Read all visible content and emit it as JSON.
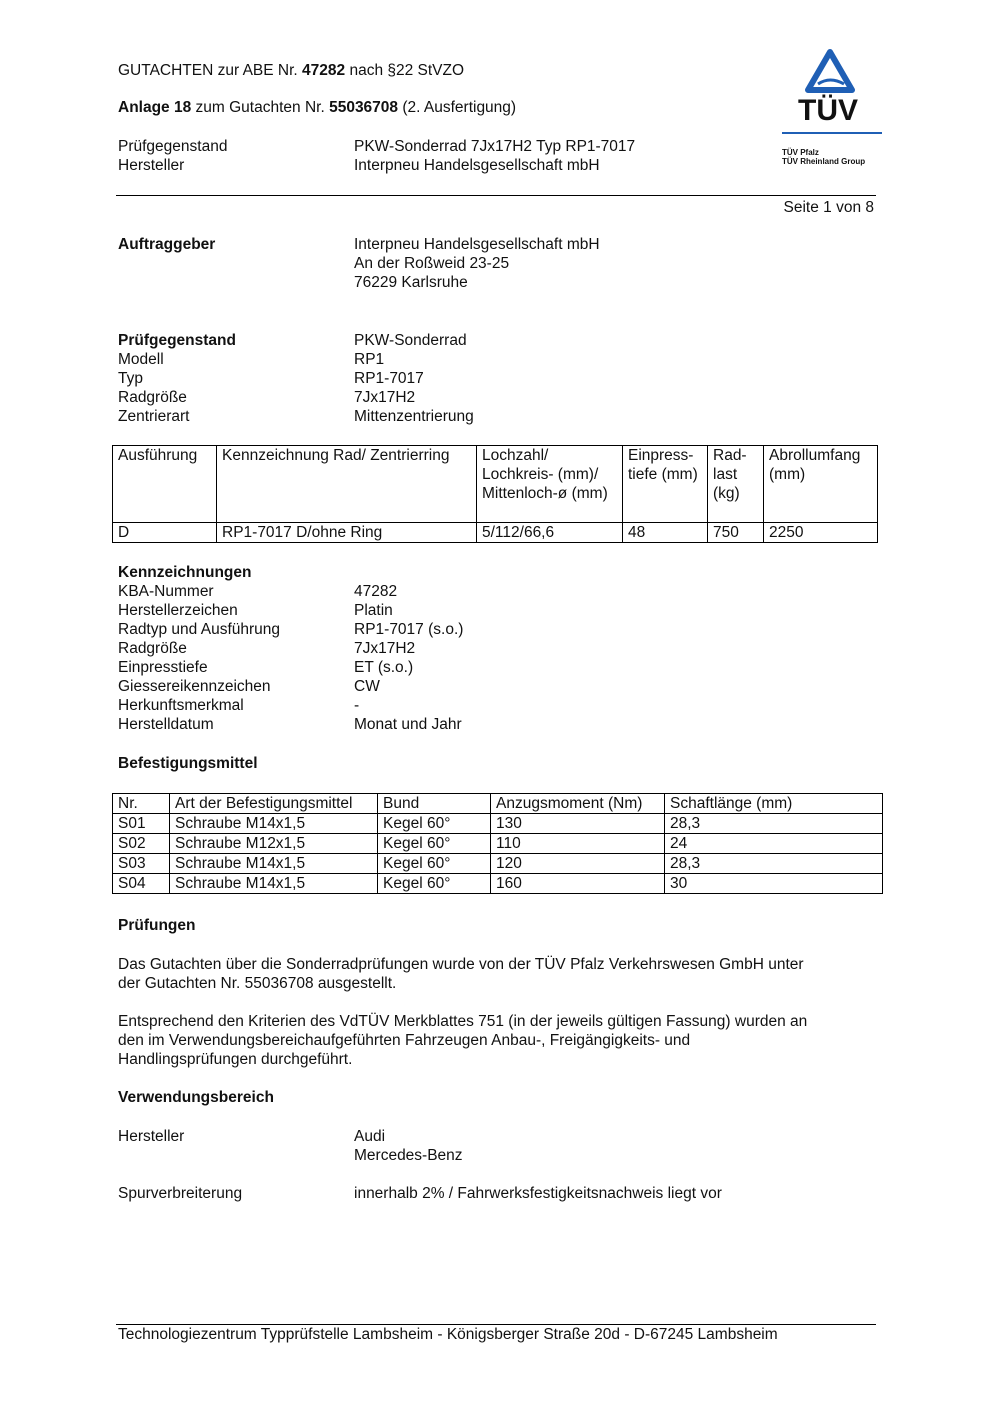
{
  "header": {
    "line1": {
      "pre": "GUTACHTEN zur ABE Nr. ",
      "num": "47282",
      "post": " nach §22 StVZO"
    },
    "line2": {
      "pre": "Anlage 18",
      "mid": " zum Gutachten Nr. ",
      "num": "55036708",
      "post": " (2. Ausfertigung)"
    },
    "rows": [
      {
        "label": "Prüfgegenstand",
        "value": "PKW-Sonderrad 7Jx17H2 Typ RP1-7017"
      },
      {
        "label": "Hersteller",
        "value": "Interpneu Handelsgesellschaft mbH"
      }
    ],
    "page": "Seite 1 von 8"
  },
  "logo": {
    "text": "TÜV",
    "sub1": "TÜV Pfalz",
    "sub2": "TÜV Rheinland Group",
    "color": "#1f5fb5"
  },
  "auftraggeber": {
    "label": "Auftraggeber",
    "lines": [
      "Interpneu Handelsgesellschaft mbH",
      "An der Roßweid 23-25",
      "76229 Karlsruhe"
    ]
  },
  "pruef": {
    "rows": [
      {
        "label": "Prüfgegenstand",
        "value": "PKW-Sonderrad"
      },
      {
        "label": "Modell",
        "value": "RP1"
      },
      {
        "label": "Typ",
        "value": "RP1-7017"
      },
      {
        "label": "Radgröße",
        "value": "7Jx17H2"
      },
      {
        "label": "Zentrierart",
        "value": "Mittenzentrierung"
      }
    ]
  },
  "table1": {
    "headers": [
      "Ausführung",
      "Kennzeichnung Rad/ Zentrierring",
      "Lochzahl/ Lochkreis- (mm)/ Mittenloch-ø (mm)",
      "Einpress-tiefe (mm)",
      "Rad-last (kg)",
      "Abrollumfang (mm)"
    ],
    "rows": [
      [
        "D",
        "RP1-7017 D/ohne Ring",
        "5/112/66,6",
        "48",
        "750",
        "2250"
      ]
    ]
  },
  "kennz": {
    "title": "Kennzeichnungen",
    "rows": [
      {
        "label": "KBA-Nummer",
        "value": "47282"
      },
      {
        "label": "Herstellerzeichen",
        "value": "Platin"
      },
      {
        "label": "Radtyp und Ausführung",
        "value": "RP1-7017 (s.o.)"
      },
      {
        "label": "Radgröße",
        "value": "7Jx17H2"
      },
      {
        "label": "Einpresstiefe",
        "value": "ET (s.o.)"
      },
      {
        "label": "Giessereikennzeichen",
        "value": "CW"
      },
      {
        "label": "Herkunftsmerkmal",
        "value": "-"
      },
      {
        "label": "Herstelldatum",
        "value": "Monat und Jahr"
      }
    ]
  },
  "befest": {
    "title": "Befestigungsmittel",
    "headers": [
      "Nr.",
      "Art der Befestigungsmittel",
      "Bund",
      "Anzugsmoment (Nm)",
      "Schaftlänge (mm)"
    ],
    "rows": [
      [
        "S01",
        "Schraube M14x1,5",
        "Kegel 60°",
        "130",
        "28,3"
      ],
      [
        "S02",
        "Schraube M12x1,5",
        "Kegel 60°",
        "110",
        "24"
      ],
      [
        "S03",
        "Schraube M14x1,5",
        "Kegel 60°",
        "120",
        "28,3"
      ],
      [
        "S04",
        "Schraube M14x1,5",
        "Kegel 60°",
        "160",
        "30"
      ]
    ]
  },
  "pruefungen": {
    "title": "Prüfungen",
    "p1": [
      "Das Gutachten über die Sonderradprüfungen wurde von der TÜV Pfalz Verkehrswesen GmbH unter",
      "der Gutachten Nr. 55036708 ausgestellt."
    ],
    "p2": [
      "Entsprechend den Kriterien des VdTÜV Merkblattes 751 (in der jeweils gültigen Fassung) wurden an",
      "den im Verwendungsbereichaufgeführten Fahrzeugen Anbau-, Freigängigkeits- und",
      "Handlingsprüfungen durchgeführt."
    ]
  },
  "verwendung": {
    "title": "Verwendungsbereich",
    "hersteller_label": "Hersteller",
    "hersteller": [
      "Audi",
      "Mercedes-Benz"
    ],
    "spur_label": "Spurverbreiterung",
    "spur": "innerhalb 2% / Fahrwerksfestigkeitsnachweis liegt vor"
  },
  "footer": "Technologiezentrum Typprüfstelle Lambsheim - Königsberger Straße 20d - D-67245 Lambsheim"
}
